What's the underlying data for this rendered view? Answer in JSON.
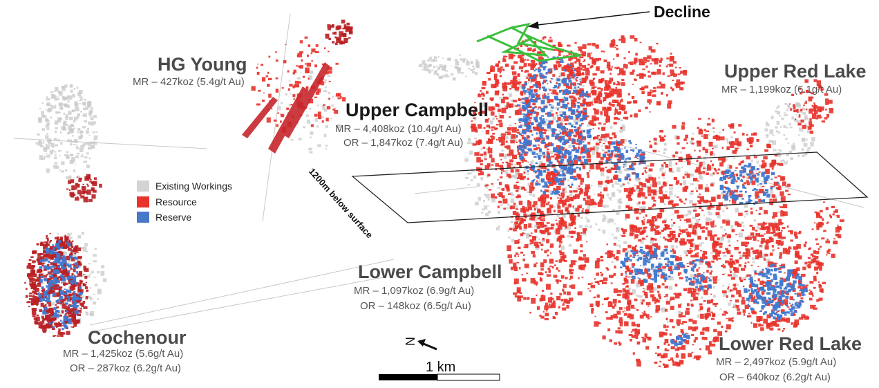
{
  "zones": [
    {
      "id": "hg-young",
      "name": "HG Young",
      "lines": [
        "MR – 427koz (5.4g/t Au)"
      ]
    },
    {
      "id": "upper-campbell",
      "name": "Upper Campbell",
      "lines": [
        "MR – 4,408koz (10.4g/t Au)",
        "OR – 1,847koz (7.4g/t Au)"
      ]
    },
    {
      "id": "upper-red-lake",
      "name": "Upper Red Lake",
      "lines": [
        "MR – 1,199koz (6.1g/t Au)"
      ]
    },
    {
      "id": "lower-campbell",
      "name": "Lower Campbell",
      "lines": [
        "MR – 1,097koz (6.9g/t Au)",
        "OR – 148koz (6.5g/t Au)"
      ]
    },
    {
      "id": "cochenour",
      "name": "Cochenour",
      "lines": [
        "MR – 1,425koz (5.6g/t Au)",
        "OR – 287koz (6.2g/t Au)"
      ]
    },
    {
      "id": "lower-red-lake",
      "name": "Lower Red Lake",
      "lines": [
        "MR – 2,497koz (5.9g/t Au)",
        "OR – 640koz (6.2g/t Au)"
      ]
    }
  ],
  "legend": [
    {
      "label": "Existing Workings",
      "color": "#d3d3d3"
    },
    {
      "label": "Resource",
      "color": "#e8322a"
    },
    {
      "label": "Reserve",
      "color": "#4a78c8"
    }
  ],
  "annotations": {
    "decline": "Decline",
    "plane": "1200m below surface",
    "north": "N",
    "scale": "1 km"
  },
  "colors": {
    "resource": "#e8322a",
    "resource_dark": "#b81e22",
    "reserve": "#3f78d0",
    "workings": "#c8c8c8",
    "decline": "#3cc03c"
  }
}
